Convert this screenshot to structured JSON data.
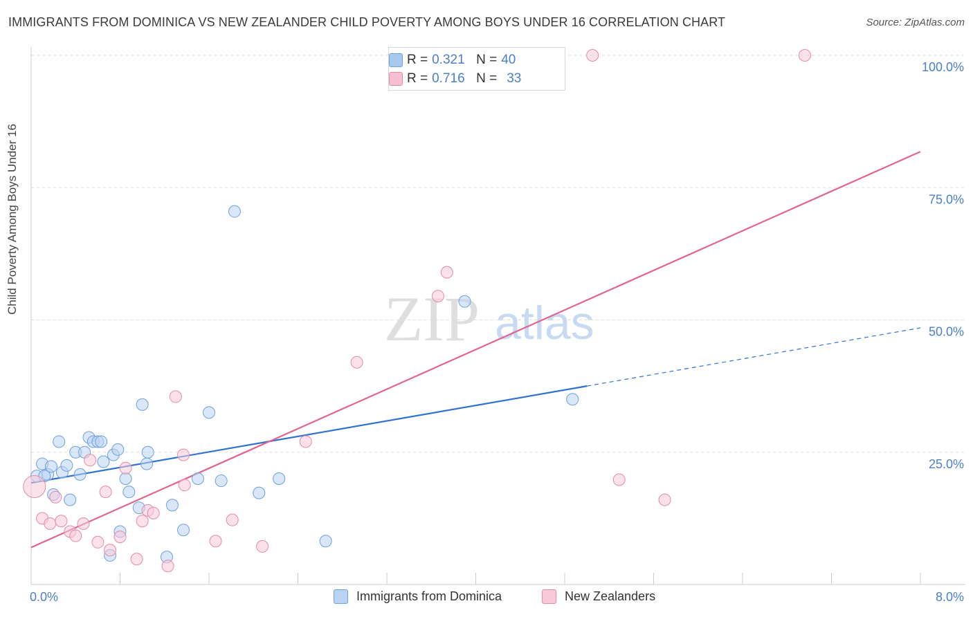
{
  "title": "IMMIGRANTS FROM DOMINICA VS NEW ZEALANDER CHILD POVERTY AMONG BOYS UNDER 16 CORRELATION CHART",
  "source": "Source: ZipAtlas.com",
  "watermark": {
    "zip": "ZIP",
    "atlas": "atlas"
  },
  "legend": {
    "rows": [
      {
        "r_label": "R =",
        "r_value": "0.321",
        "n_label": "N =",
        "n_value": "40",
        "color": "#a9c8f0",
        "border": "#6f9fdc"
      },
      {
        "r_label": "R =",
        "r_value": "0.716",
        "n_label": "N =",
        "n_value": "33",
        "color": "#f6c0d2",
        "border": "#e48aa8"
      }
    ]
  },
  "bottom_legend": [
    {
      "label": "Immigrants from Dominica",
      "color": "#b9d3f3",
      "border": "#6f9fdc"
    },
    {
      "label": "New Zealanders",
      "color": "#f8cad9",
      "border": "#e48aa8"
    }
  ],
  "chart_data": {
    "type": "scatter",
    "title": "IMMIGRANTS FROM DOMINICA VS NEW ZEALANDER CHILD POVERTY AMONG BOYS UNDER 16 CORRELATION CHART",
    "xlabel": "",
    "ylabel": "Child Poverty Among Boys Under 16",
    "xlim": [
      0,
      8
    ],
    "ylim": [
      0,
      100
    ],
    "x_tick_labels": [
      "0.0%",
      "8.0%"
    ],
    "y_ticks": [
      25,
      50,
      75,
      100
    ],
    "y_tick_labels": [
      "25.0%",
      "50.0%",
      "75.0%",
      "100.0%"
    ],
    "series": [
      {
        "name": "Immigrants from Dominica",
        "color": "#6f9fdc",
        "fill": "#b9d3f3",
        "r": 0.321,
        "n": 40,
        "points": [
          [
            0.05,
            20.5
          ],
          [
            0.1,
            22.8
          ],
          [
            0.15,
            20.8
          ],
          [
            0.18,
            22.3
          ],
          [
            0.2,
            17.0
          ],
          [
            0.25,
            27.0
          ],
          [
            0.28,
            21.2
          ],
          [
            0.32,
            22.5
          ],
          [
            0.35,
            16.0
          ],
          [
            0.4,
            25.0
          ],
          [
            0.44,
            20.8
          ],
          [
            0.48,
            25.0
          ],
          [
            0.52,
            27.8
          ],
          [
            0.56,
            27.0
          ],
          [
            0.6,
            27.0
          ],
          [
            0.65,
            23.2
          ],
          [
            0.71,
            5.5
          ],
          [
            0.74,
            24.5
          ],
          [
            0.78,
            25.5
          ],
          [
            0.8,
            10.0
          ],
          [
            0.85,
            20.0
          ],
          [
            0.88,
            17.5
          ],
          [
            0.97,
            14.5
          ],
          [
            1.0,
            34.0
          ],
          [
            1.04,
            22.8
          ],
          [
            1.05,
            25.0
          ],
          [
            1.22,
            5.2
          ],
          [
            1.27,
            15.0
          ],
          [
            1.37,
            10.3
          ],
          [
            1.5,
            20.0
          ],
          [
            1.6,
            32.5
          ],
          [
            1.71,
            19.6
          ],
          [
            1.83,
            70.5
          ],
          [
            2.05,
            17.3
          ],
          [
            2.23,
            20.0
          ],
          [
            2.65,
            8.2
          ],
          [
            4.87,
            35.0
          ],
          [
            3.9,
            53.5
          ],
          [
            0.12,
            20.5
          ],
          [
            0.63,
            27.0
          ]
        ]
      },
      {
        "name": "New Zealanders",
        "color": "#e48aa8",
        "fill": "#f8cad9",
        "r": 0.716,
        "n": 33,
        "points": [
          [
            0.03,
            18.5
          ],
          [
            0.1,
            12.5
          ],
          [
            0.17,
            11.5
          ],
          [
            0.22,
            16.5
          ],
          [
            0.27,
            12.0
          ],
          [
            0.35,
            10.0
          ],
          [
            0.4,
            9.2
          ],
          [
            0.47,
            11.5
          ],
          [
            0.53,
            23.5
          ],
          [
            0.6,
            8.0
          ],
          [
            0.67,
            17.5
          ],
          [
            0.71,
            6.5
          ],
          [
            0.8,
            9.0
          ],
          [
            0.85,
            22.0
          ],
          [
            0.95,
            4.8
          ],
          [
            1.0,
            12.0
          ],
          [
            1.05,
            14.0
          ],
          [
            1.1,
            13.5
          ],
          [
            1.23,
            3.5
          ],
          [
            1.3,
            35.5
          ],
          [
            1.37,
            24.5
          ],
          [
            1.38,
            18.8
          ],
          [
            1.66,
            8.2
          ],
          [
            1.81,
            12.2
          ],
          [
            2.08,
            7.2
          ],
          [
            2.47,
            27.0
          ],
          [
            2.93,
            42.0
          ],
          [
            3.66,
            54.5
          ],
          [
            3.74,
            59.0
          ],
          [
            5.05,
            100.0
          ],
          [
            5.29,
            19.8
          ],
          [
            5.7,
            16.0
          ],
          [
            6.96,
            100.0
          ]
        ]
      }
    ],
    "trend_lines": [
      {
        "series": "Immigrants from Dominica",
        "color": "#2f72d0",
        "x0": 0.0,
        "y0": 19.2,
        "x1": 5.0,
        "y1": 37.5,
        "dash_to_x": 8.0,
        "dash_to_y": 48.5
      },
      {
        "series": "New Zealanders",
        "color": "#e0648f",
        "x0": 0.0,
        "y0": 7.0,
        "x1": 8.0,
        "y1": 81.8
      }
    ]
  }
}
